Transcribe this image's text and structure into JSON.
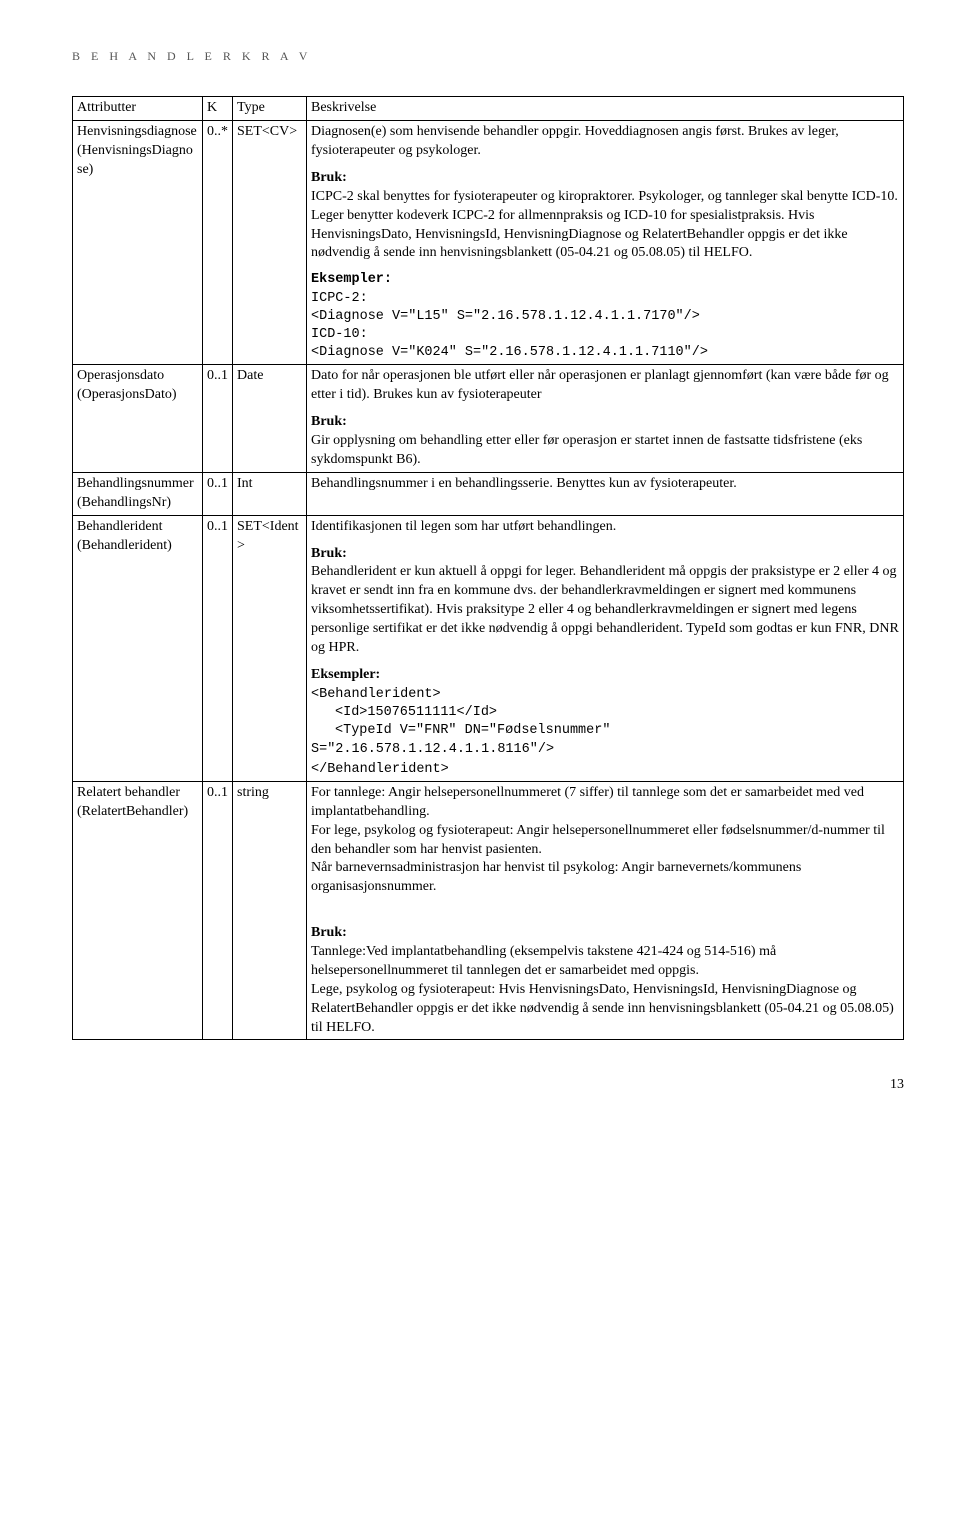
{
  "page_header": "B E H A N D L E R K R A V",
  "table": {
    "headers": {
      "attr": "Attributter",
      "k": "K",
      "type": "Type",
      "desc": "Beskrivelse"
    },
    "rows": [
      {
        "attr_line1": "Henvisningsdiagnose",
        "attr_line2": "(HenvisningsDiagnose)",
        "k": "0..*",
        "type": "SET<CV>",
        "desc_p1": "Diagnosen(e) som henvisende behandler oppgir. Hoveddiagnosen angis først. Brukes av leger, fysioterapeuter og psykologer.",
        "bruk_label": "Bruk:",
        "bruk_text": "ICPC-2 skal benyttes for fysioterapeuter og kiropraktorer. Psykologer, og tannleger skal benytte ICD-10. Leger benytter kodeverk ICPC-2 for allmennpraksis og ICD-10 for spesialistpraksis. Hvis HenvisningsDato, HenvisningsId, HenvisningDiagnose og RelatertBehandler oppgis er det ikke nødvendig å sende inn henvisningsblankett (05-04.21 og 05.08.05) til HELFO.",
        "eks_label": "Eksempler:",
        "eks_l1": "ICPC-2:",
        "eks_l2": "<Diagnose V=\"L15\" S=\"2.16.578.1.12.4.1.1.7170\"/>",
        "eks_l3": "ICD-10:",
        "eks_l4": "<Diagnose V=\"K024\" S=\"2.16.578.1.12.4.1.1.7110\"/>"
      },
      {
        "attr_line1": "Operasjonsdato",
        "attr_line2": "(OperasjonsDato)",
        "k": "0..1",
        "type": "Date",
        "desc_p1": "Dato for når operasjonen ble utført eller når operasjonen er planlagt gjennomført (kan være både før og etter i tid). Brukes kun av fysioterapeuter",
        "bruk_label": "Bruk:",
        "bruk_text": "Gir opplysning om behandling etter eller før operasjon er startet innen de fastsatte tidsfristene (eks sykdomspunkt B6)."
      },
      {
        "attr_line1": "Behandlingsnummer",
        "attr_line2": "(BehandlingsNr)",
        "k": "0..1",
        "type": "Int",
        "desc_p1": "Behandlingsnummer i en behandlingsserie. Benyttes kun av fysioterapeuter."
      },
      {
        "attr_line1": "Behandlerident",
        "attr_line2": "(Behandlerident)",
        "k": "0..1",
        "type": "SET<Ident>",
        "desc_p1": "Identifikasjonen til legen som har utført behandlingen.",
        "bruk_label": "Bruk:",
        "bruk_text": "Behandlerident er kun aktuell å oppgi for leger. Behandlerident må oppgis der praksistype er 2 eller 4 og kravet er sendt inn fra en kommune dvs. der behandlerkravmeldingen er signert med kommunens viksomhetssertifikat). Hvis praksitype 2 eller 4 og behandlerkravmeldingen er signert med legens personlige sertifikat er det ikke nødvendig å oppgi behandlerident. TypeId som godtas er kun FNR, DNR og HPR.",
        "eks_label": "Eksempler:",
        "eks_l1": "<Behandlerident>",
        "eks_l2": "<Id>15076511111</Id>",
        "eks_l3": "<TypeId V=\"FNR\" DN=\"Fødselsnummer\"",
        "eks_l4": "S=\"2.16.578.1.12.4.1.1.8116\"/>",
        "eks_l5": "</Behandlerident>"
      },
      {
        "attr_line1": "Relatert behandler",
        "attr_line2": "(RelatertBehandler)",
        "k": "0..1",
        "type": "string",
        "desc_p1": "For tannlege: Angir helsepersonellnummeret (7 siffer) til tannlege som det er samarbeidet med ved implantatbehandling.",
        "desc_p2": "For lege, psykolog og fysioterapeut: Angir helsepersonellnummeret eller fødselsnummer/d-nummer til den behandler som har henvist pasienten.",
        "desc_p3": "Når barnevernsadministrasjon har henvist til psykolog: Angir barnevernets/kommunens organisasjonsnummer.",
        "bruk_label": "Bruk:",
        "bruk_text1": "Tannlege:Ved implantatbehandling (eksempelvis takstene 421-424 og 514-516) må helsepersonellnummeret til tannlegen det er samarbeidet med oppgis.",
        "bruk_text2": "Lege, psykolog og fysioterapeut: Hvis HenvisningsDato, HenvisningsId, HenvisningDiagnose og RelatertBehandler oppgis er det ikke nødvendig å sende inn henvisningsblankett (05-04.21 og 05.08.05) til HELFO."
      }
    ]
  },
  "page_number": "13"
}
